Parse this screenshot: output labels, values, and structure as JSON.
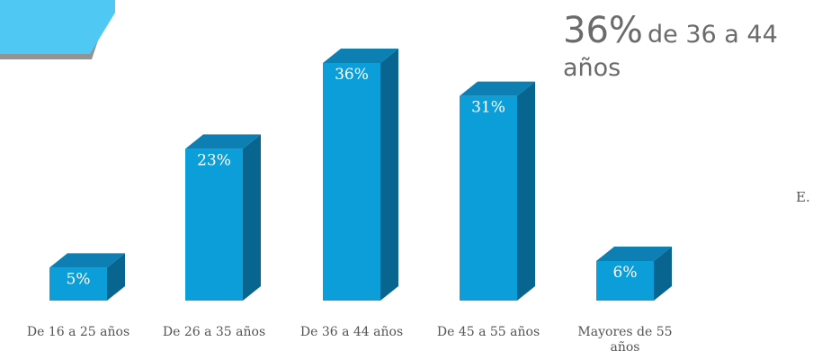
{
  "headline": {
    "big": "36%",
    "rest": "de 36 a 44",
    "line2": "años"
  },
  "side_mark": "E.",
  "colors": {
    "bar_front": "#0b9ed9",
    "bar_top": "#0d7fb3",
    "bar_side": "#08658f",
    "banner": "#4fc9f3",
    "banner_shadow": "#3a3a3a"
  },
  "chart_data": {
    "type": "bar",
    "style": "3d-column",
    "categories": [
      "De 16 a 25 años",
      "De 26 a 35 años",
      "De 36 a 44 años",
      "De 45 a 55 años",
      "Mayores de 55 años"
    ],
    "category_lines": [
      [
        "De 16 a 25 años"
      ],
      [
        "De 26 a 35 años"
      ],
      [
        "De 36 a 44 años"
      ],
      [
        "De 45 a 55 años"
      ],
      [
        "Mayores de 55",
        "años"
      ]
    ],
    "values": [
      5,
      23,
      36,
      31,
      6
    ],
    "data_labels": [
      "5%",
      "23%",
      "36%",
      "31%",
      "6%"
    ],
    "unit": "%",
    "ylim": [
      0,
      40
    ],
    "grid": false,
    "legend": "none"
  }
}
